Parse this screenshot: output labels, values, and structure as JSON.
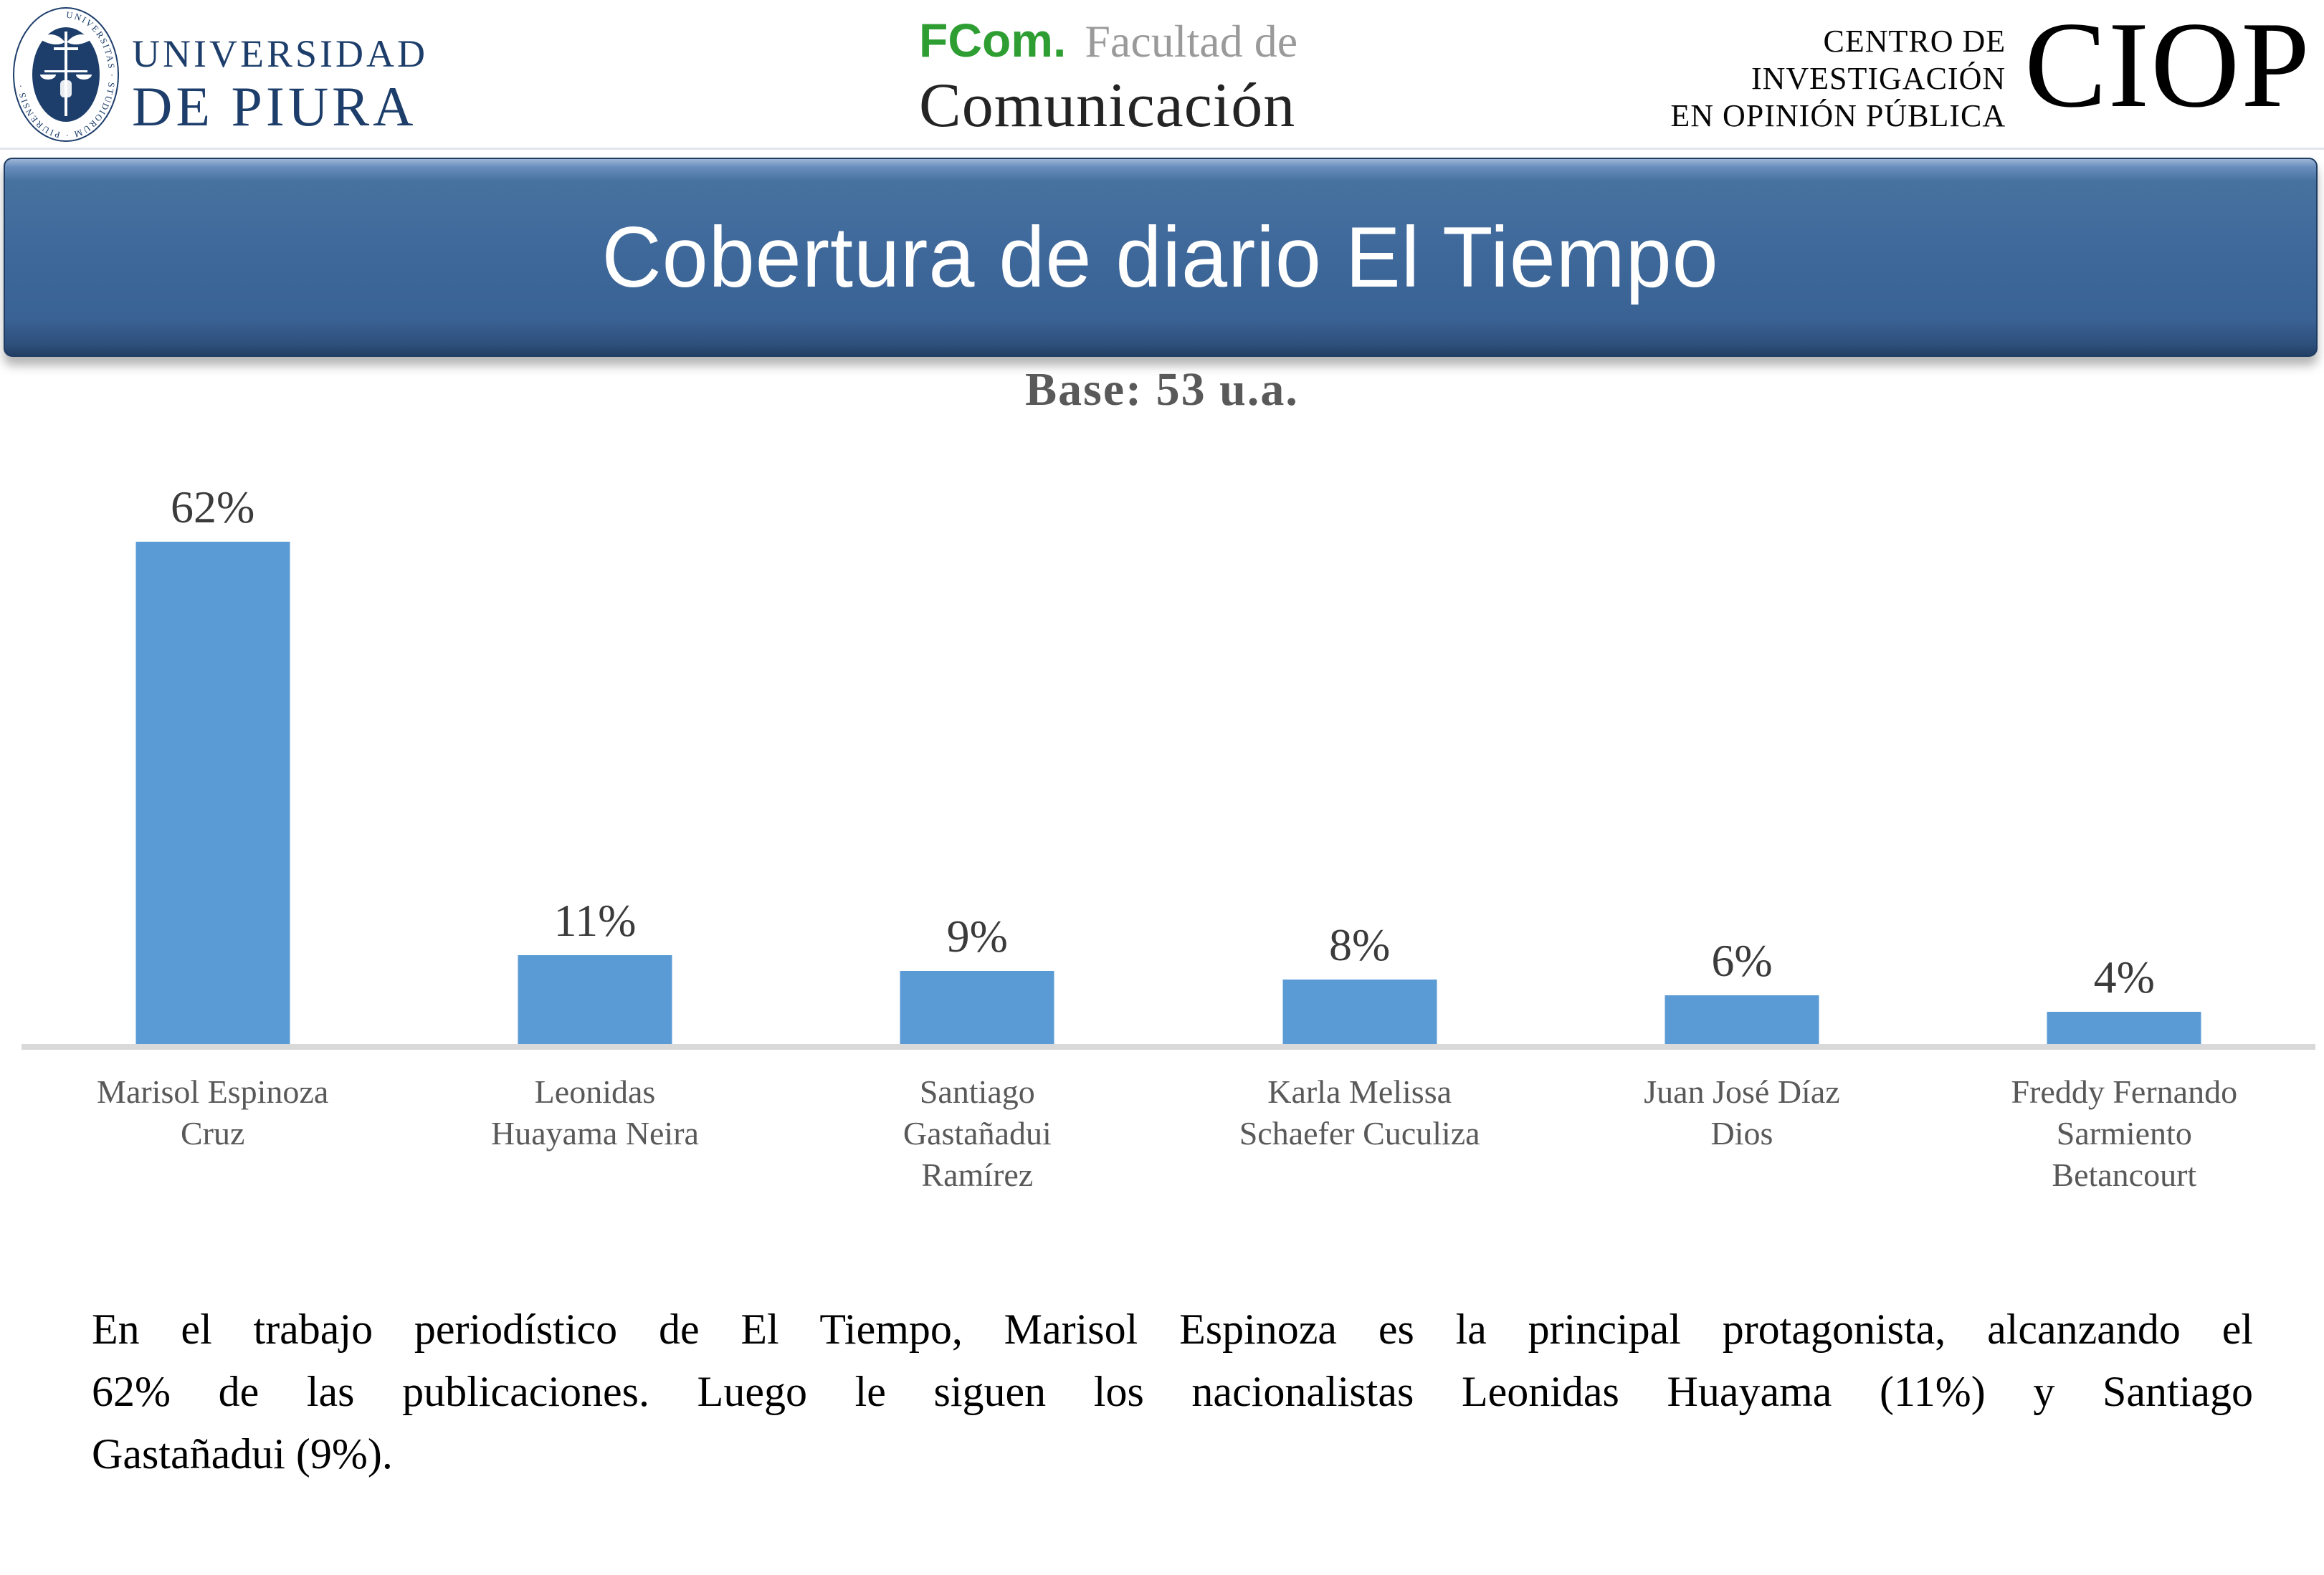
{
  "slide": {
    "title": "Cobertura de diario El Tiempo",
    "base_label": "Base: 53 u.a."
  },
  "header": {
    "udep": {
      "seal_text": "UNIVERSITAS · STUDIORUM · PIURENSIS ·",
      "line1": "UNIVERSIDAD",
      "line2": "DE PIURA"
    },
    "fcom": {
      "abbr": "FCom.",
      "tagline": "Facultad de",
      "name": "Comunicación"
    },
    "ciop": {
      "line1": "CENTRO DE",
      "line2": "INVESTIGACIÓN",
      "line3": "EN OPINIÓN PÚBLICA",
      "abbr": "CIOP"
    }
  },
  "chart_data": {
    "type": "bar",
    "title": "Cobertura de diario El Tiempo",
    "subtitle": "Base: 53 u.a.",
    "categories": [
      "Marisol Espinoza Cruz",
      "Leonidas Huayama Neira",
      "Santiago Gastañadui Ramírez",
      "Karla Melissa Schaefer Cuculiza",
      "Juan José Díaz Dios",
      "Freddy Fernando Sarmiento Betancourt"
    ],
    "category_lines": [
      [
        "Marisol Espinoza",
        "Cruz"
      ],
      [
        "Leonidas",
        "Huayama Neira"
      ],
      [
        "Santiago",
        "Gastañadui",
        "Ramírez"
      ],
      [
        "Karla Melissa",
        "Schaefer Cuculiza"
      ],
      [
        "Juan José Díaz",
        "Dios"
      ],
      [
        "Freddy Fernando",
        "Sarmiento",
        "Betancourt"
      ]
    ],
    "values": [
      62,
      11,
      9,
      8,
      6,
      4
    ],
    "value_labels": [
      "62%",
      "11%",
      "9%",
      "8%",
      "6%",
      "4%"
    ],
    "unit": "%",
    "ylim": [
      0,
      68
    ],
    "grid": false,
    "legend": false,
    "bar_color": "#5b9bd5",
    "axis_color": "#d9d9d9"
  },
  "footer": {
    "note": "En el trabajo periodístico de El Tiempo, Marisol Espinoza es la principal protagonista, alcanzando el 62% de las publicaciones. Luego le siguen los nacionalistas Leonidas Huayama (11%) y Santiago Gastañadui (9%).",
    "note_lines": [
      "En el trabajo periodístico de El Tiempo, Marisol Espinoza es la principal protagonista, alcanzando el",
      "62% de las publicaciones. Luego le siguen los nacionalistas Leonidas Huayama (11%) y Santiago",
      "Gastañadui (9%)."
    ]
  },
  "colors": {
    "bar_blue": "#5b9bd5",
    "banner_blue": "#3e689a",
    "navy": "#1d3e6b",
    "fcom_green": "#2e9e33",
    "label_gray": "#595959",
    "axis_gray": "#d9d9d9"
  }
}
